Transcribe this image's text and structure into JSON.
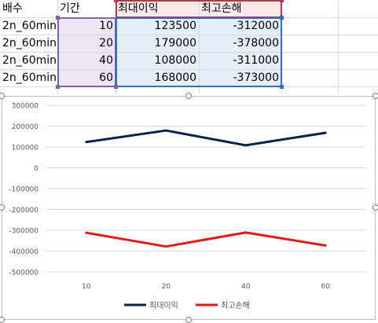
{
  "spreadsheet": {
    "headers": [
      "배수",
      "기간",
      "최대이익",
      "최고손해"
    ],
    "rows": [
      [
        "2n_60min",
        "10",
        "123500",
        "-312000"
      ],
      [
        "2n_60min",
        "20",
        "179000",
        "-378000"
      ],
      [
        "2n_60min",
        "40",
        "108000",
        "-311000"
      ],
      [
        "2n_60min",
        "60",
        "168000",
        "-373000"
      ]
    ]
  },
  "chart_data": {
    "type": "line",
    "title": "",
    "xlabel": "",
    "ylabel": "",
    "categories": [
      "10",
      "20",
      "40",
      "60"
    ],
    "series": [
      {
        "name": "최대이익",
        "values": [
          123500,
          179000,
          108000,
          168000
        ],
        "color": "#0d1f4f"
      },
      {
        "name": "최고손해",
        "values": [
          -312000,
          -378000,
          -311000,
          -373000
        ],
        "color": "#e31a1a"
      }
    ],
    "ylim": [
      -500000,
      300000
    ],
    "yticks": [
      "300000",
      "200000",
      "100000",
      "0",
      "-100000",
      "-200000",
      "-300000",
      "-400000",
      "-500000"
    ],
    "grid": true,
    "legend": "bottom"
  },
  "colors": {
    "period_range": "#7f62a8",
    "period_fill": "#ede7f5",
    "values_range": "#2e6fbf",
    "values_fill": "#e6eef9",
    "header_range": "#b03a48",
    "header_fill": "#fbe9ea"
  }
}
